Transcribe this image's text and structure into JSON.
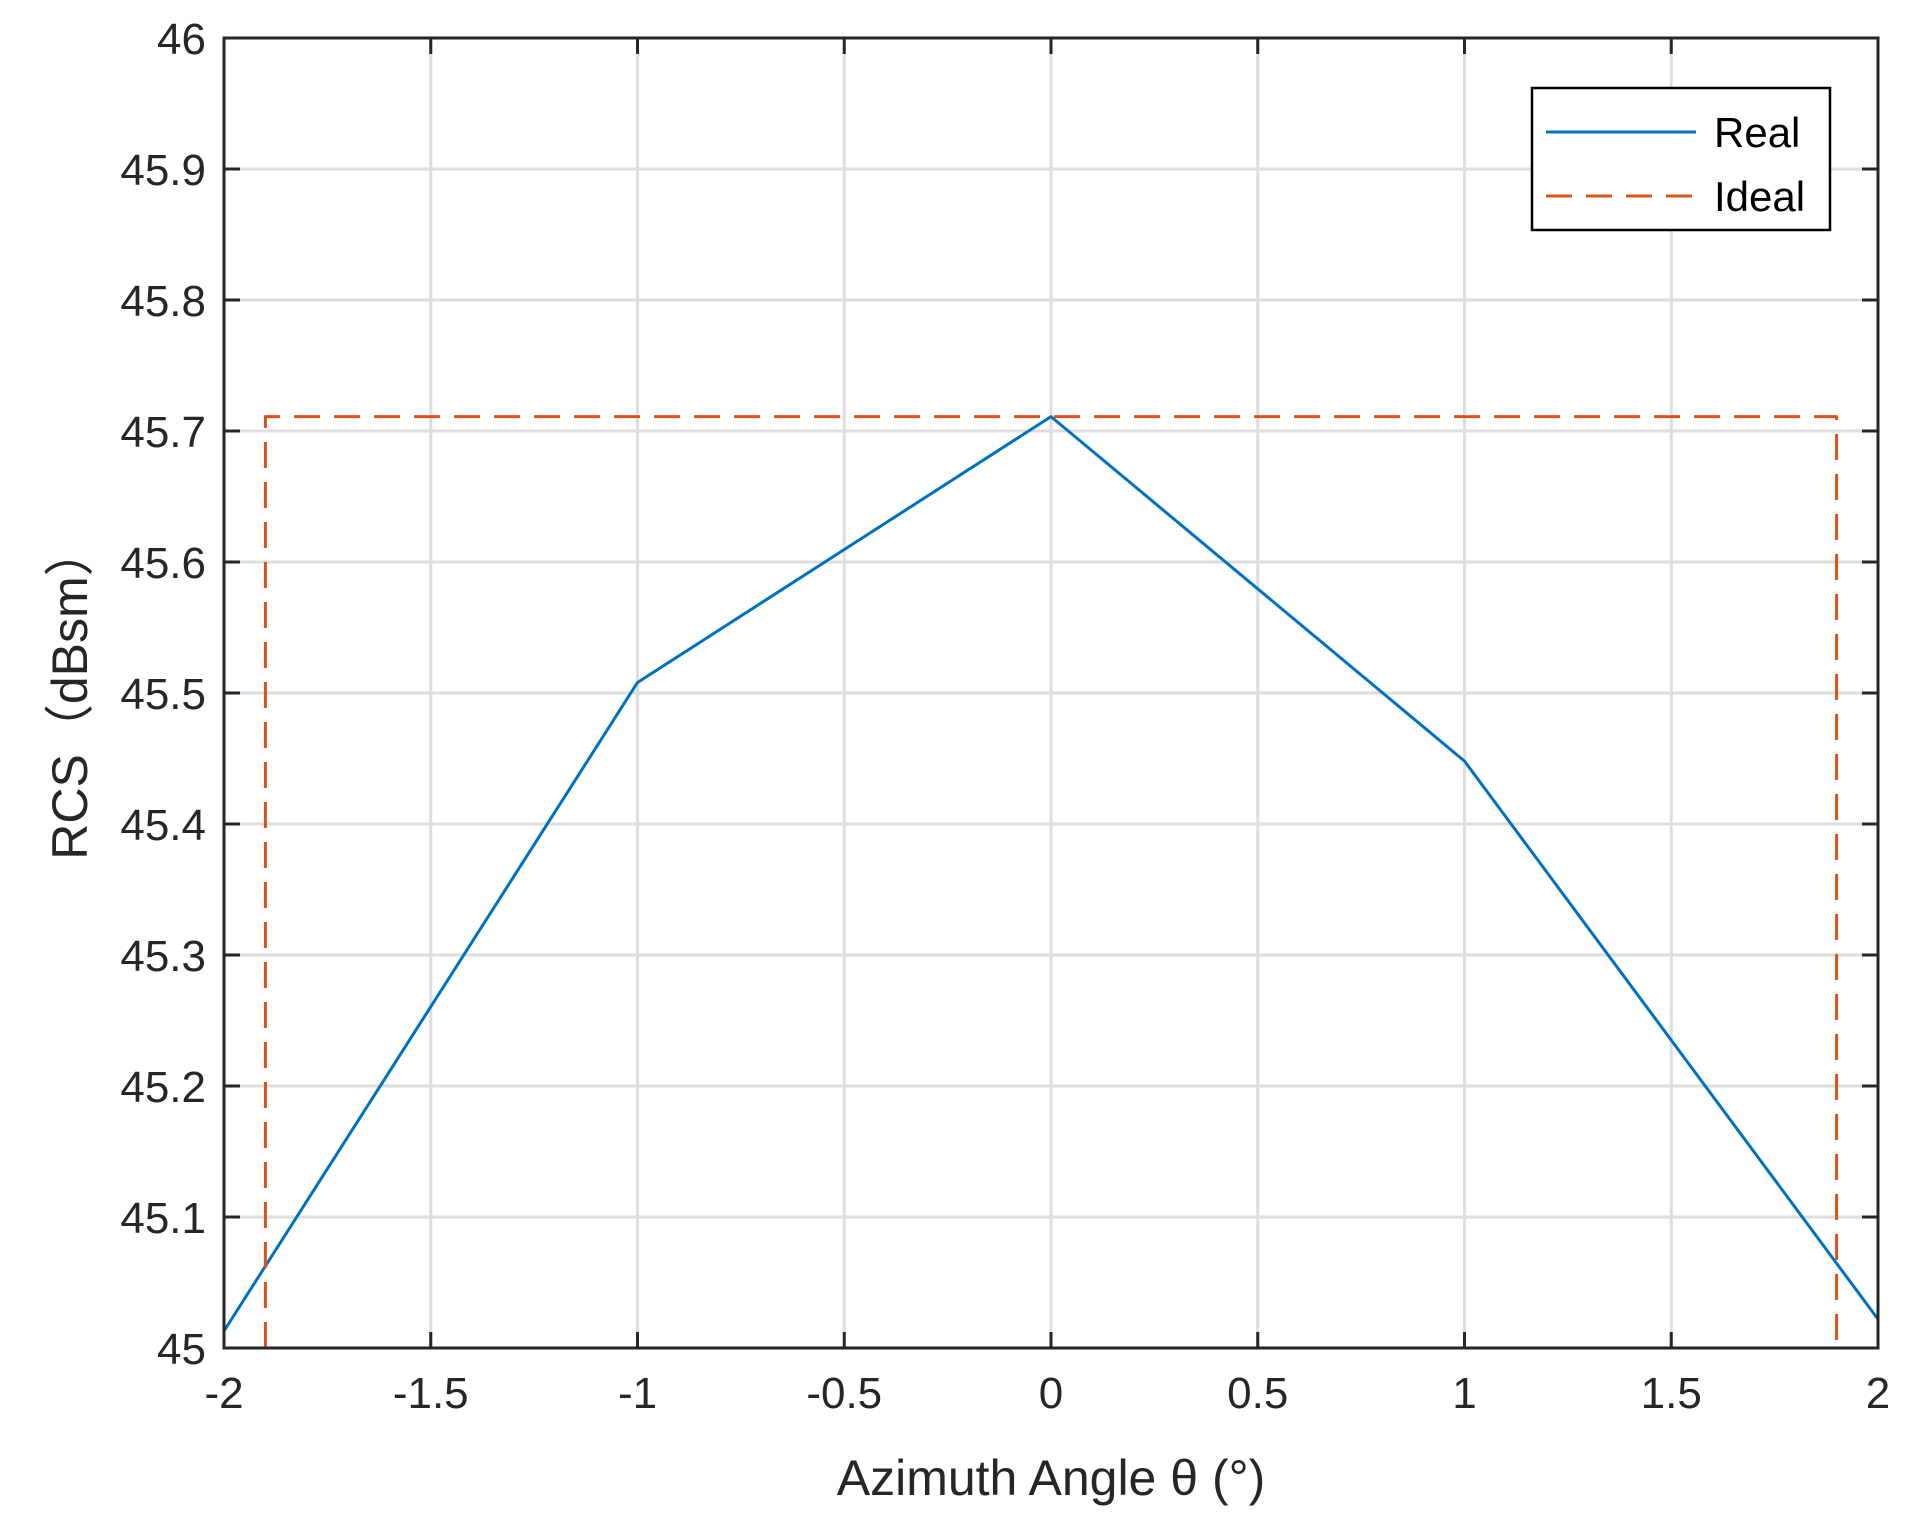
{
  "chart_data": {
    "type": "line",
    "title": "",
    "xlabel": "Azimuth Angle θ (°)",
    "ylabel": "RCS（dBsm）",
    "xlim": [
      -2,
      2
    ],
    "ylim": [
      45,
      46
    ],
    "xticks": [
      -2,
      -1.5,
      -1,
      -0.5,
      0,
      0.5,
      1,
      1.5,
      2
    ],
    "xtick_labels": [
      "-2",
      "-1.5",
      "-1",
      "-0.5",
      "0",
      "0.5",
      "1",
      "1.5",
      "2"
    ],
    "yticks": [
      45,
      45.1,
      45.2,
      45.3,
      45.4,
      45.5,
      45.6,
      45.7,
      45.8,
      45.9,
      46
    ],
    "ytick_labels": [
      "45",
      "45.1",
      "45.2",
      "45.3",
      "45.4",
      "45.5",
      "45.6",
      "45.7",
      "45.8",
      "45.9",
      "46"
    ],
    "grid": true,
    "legend_position": "top-right",
    "series": [
      {
        "name": "Real",
        "style": "solid",
        "color": "#0072BD",
        "x": [
          -2,
          -1,
          0,
          1,
          2
        ],
        "y": [
          45.013,
          45.508,
          45.711,
          45.448,
          45.022
        ]
      },
      {
        "name": "Ideal",
        "style": "dashed",
        "color": "#D95319",
        "x": [
          -1.9,
          -1.9,
          1.9,
          1.9
        ],
        "y": [
          45,
          45.711,
          45.711,
          45
        ]
      }
    ]
  }
}
